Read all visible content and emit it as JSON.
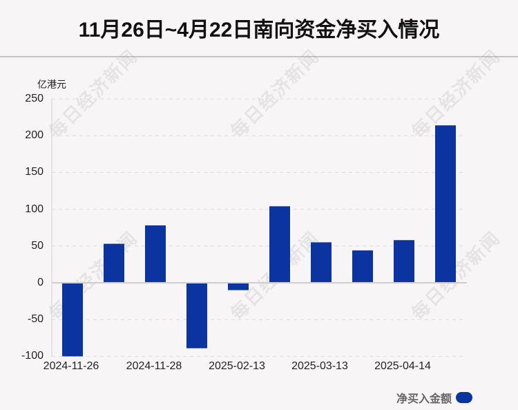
{
  "title": "11月26日~4月22日南向资金净买入情况",
  "watermark_text": "每日经济新闻",
  "legend": {
    "label": "净买入金额",
    "color": "#0b34a0"
  },
  "chart_data": {
    "type": "bar",
    "title": "11月26日~4月22日南向资金净买入情况",
    "xlabel": "",
    "ylabel": "亿港元",
    "ylim": [
      -100,
      250
    ],
    "yticks": [
      250,
      200,
      150,
      100,
      50,
      0,
      -50,
      -100
    ],
    "grid": true,
    "legend_position": "bottom-right",
    "categories": [
      "2024-11-26",
      "",
      "2024-11-28",
      "",
      "2025-02-13",
      "",
      "2025-03-13",
      "",
      "2025-04-14",
      ""
    ],
    "xtick_labels": [
      "2024-11-26",
      "2024-11-28",
      "2025-02-13",
      "2025-03-13",
      "2025-04-14"
    ],
    "series": [
      {
        "name": "净买入金额",
        "color": "#0b34a0",
        "values": [
          -100,
          53,
          78,
          -89,
          -10,
          104,
          55,
          44,
          58,
          214
        ]
      }
    ]
  }
}
